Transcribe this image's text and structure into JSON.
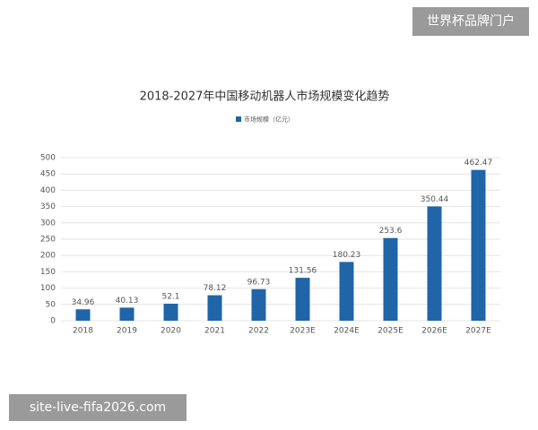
{
  "chart_data": {
    "type": "bar",
    "title": "2018-2027年中国移动机器人市场规模变化趋势",
    "categories": [
      "2018",
      "2019",
      "2020",
      "2021",
      "2022",
      "2023E",
      "2024E",
      "2025E",
      "2026E",
      "2027E"
    ],
    "series": [
      {
        "name": "市场规模（亿元）",
        "color": "#1f65a8",
        "values": [
          34.96,
          40.13,
          52.1,
          78.12,
          96.73,
          131.56,
          180.23,
          253.6,
          350.44,
          462.47
        ]
      }
    ],
    "ylim": [
      0,
      500
    ],
    "yticks": [
      0,
      50,
      100,
      150,
      200,
      250,
      300,
      350,
      400,
      450,
      500
    ],
    "grid": true,
    "legend": "top"
  },
  "watermarks": {
    "top_right": "世界杯品牌门户",
    "bottom_left": "site-live-fifa2026.com"
  }
}
